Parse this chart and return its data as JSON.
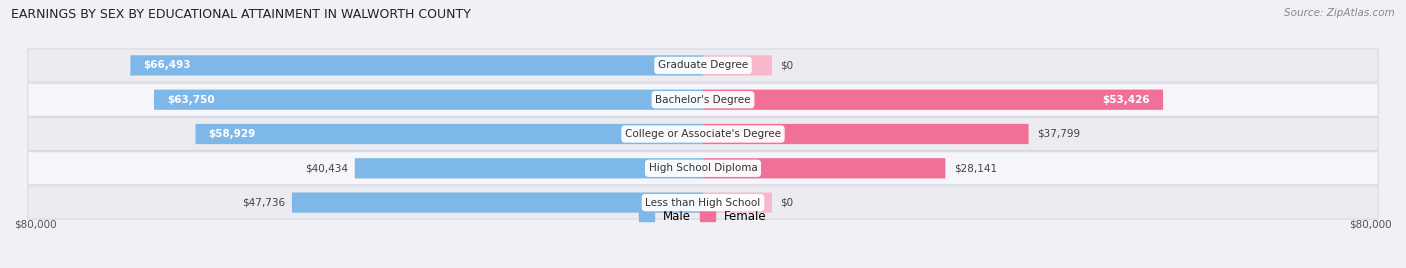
{
  "title": "EARNINGS BY SEX BY EDUCATIONAL ATTAINMENT IN WALWORTH COUNTY",
  "source": "Source: ZipAtlas.com",
  "categories": [
    "Less than High School",
    "High School Diploma",
    "College or Associate's Degree",
    "Bachelor's Degree",
    "Graduate Degree"
  ],
  "male_values": [
    47736,
    40434,
    58929,
    63750,
    66493
  ],
  "female_values": [
    0,
    28141,
    37799,
    53426,
    0
  ],
  "male_color": "#7eb8e8",
  "female_color": "#f07098",
  "female_color_light": "#f8b8cc",
  "max_value": 80000,
  "bar_height": 0.58,
  "row_bg_even": "#ebebf0",
  "row_bg_odd": "#f5f5fa",
  "figsize": [
    14.06,
    2.68
  ],
  "dpi": 100,
  "x_label_left": "$80,000",
  "x_label_right": "$80,000",
  "title_fontsize": 9,
  "source_fontsize": 7.5,
  "label_fontsize": 7.5,
  "cat_fontsize": 7.5
}
